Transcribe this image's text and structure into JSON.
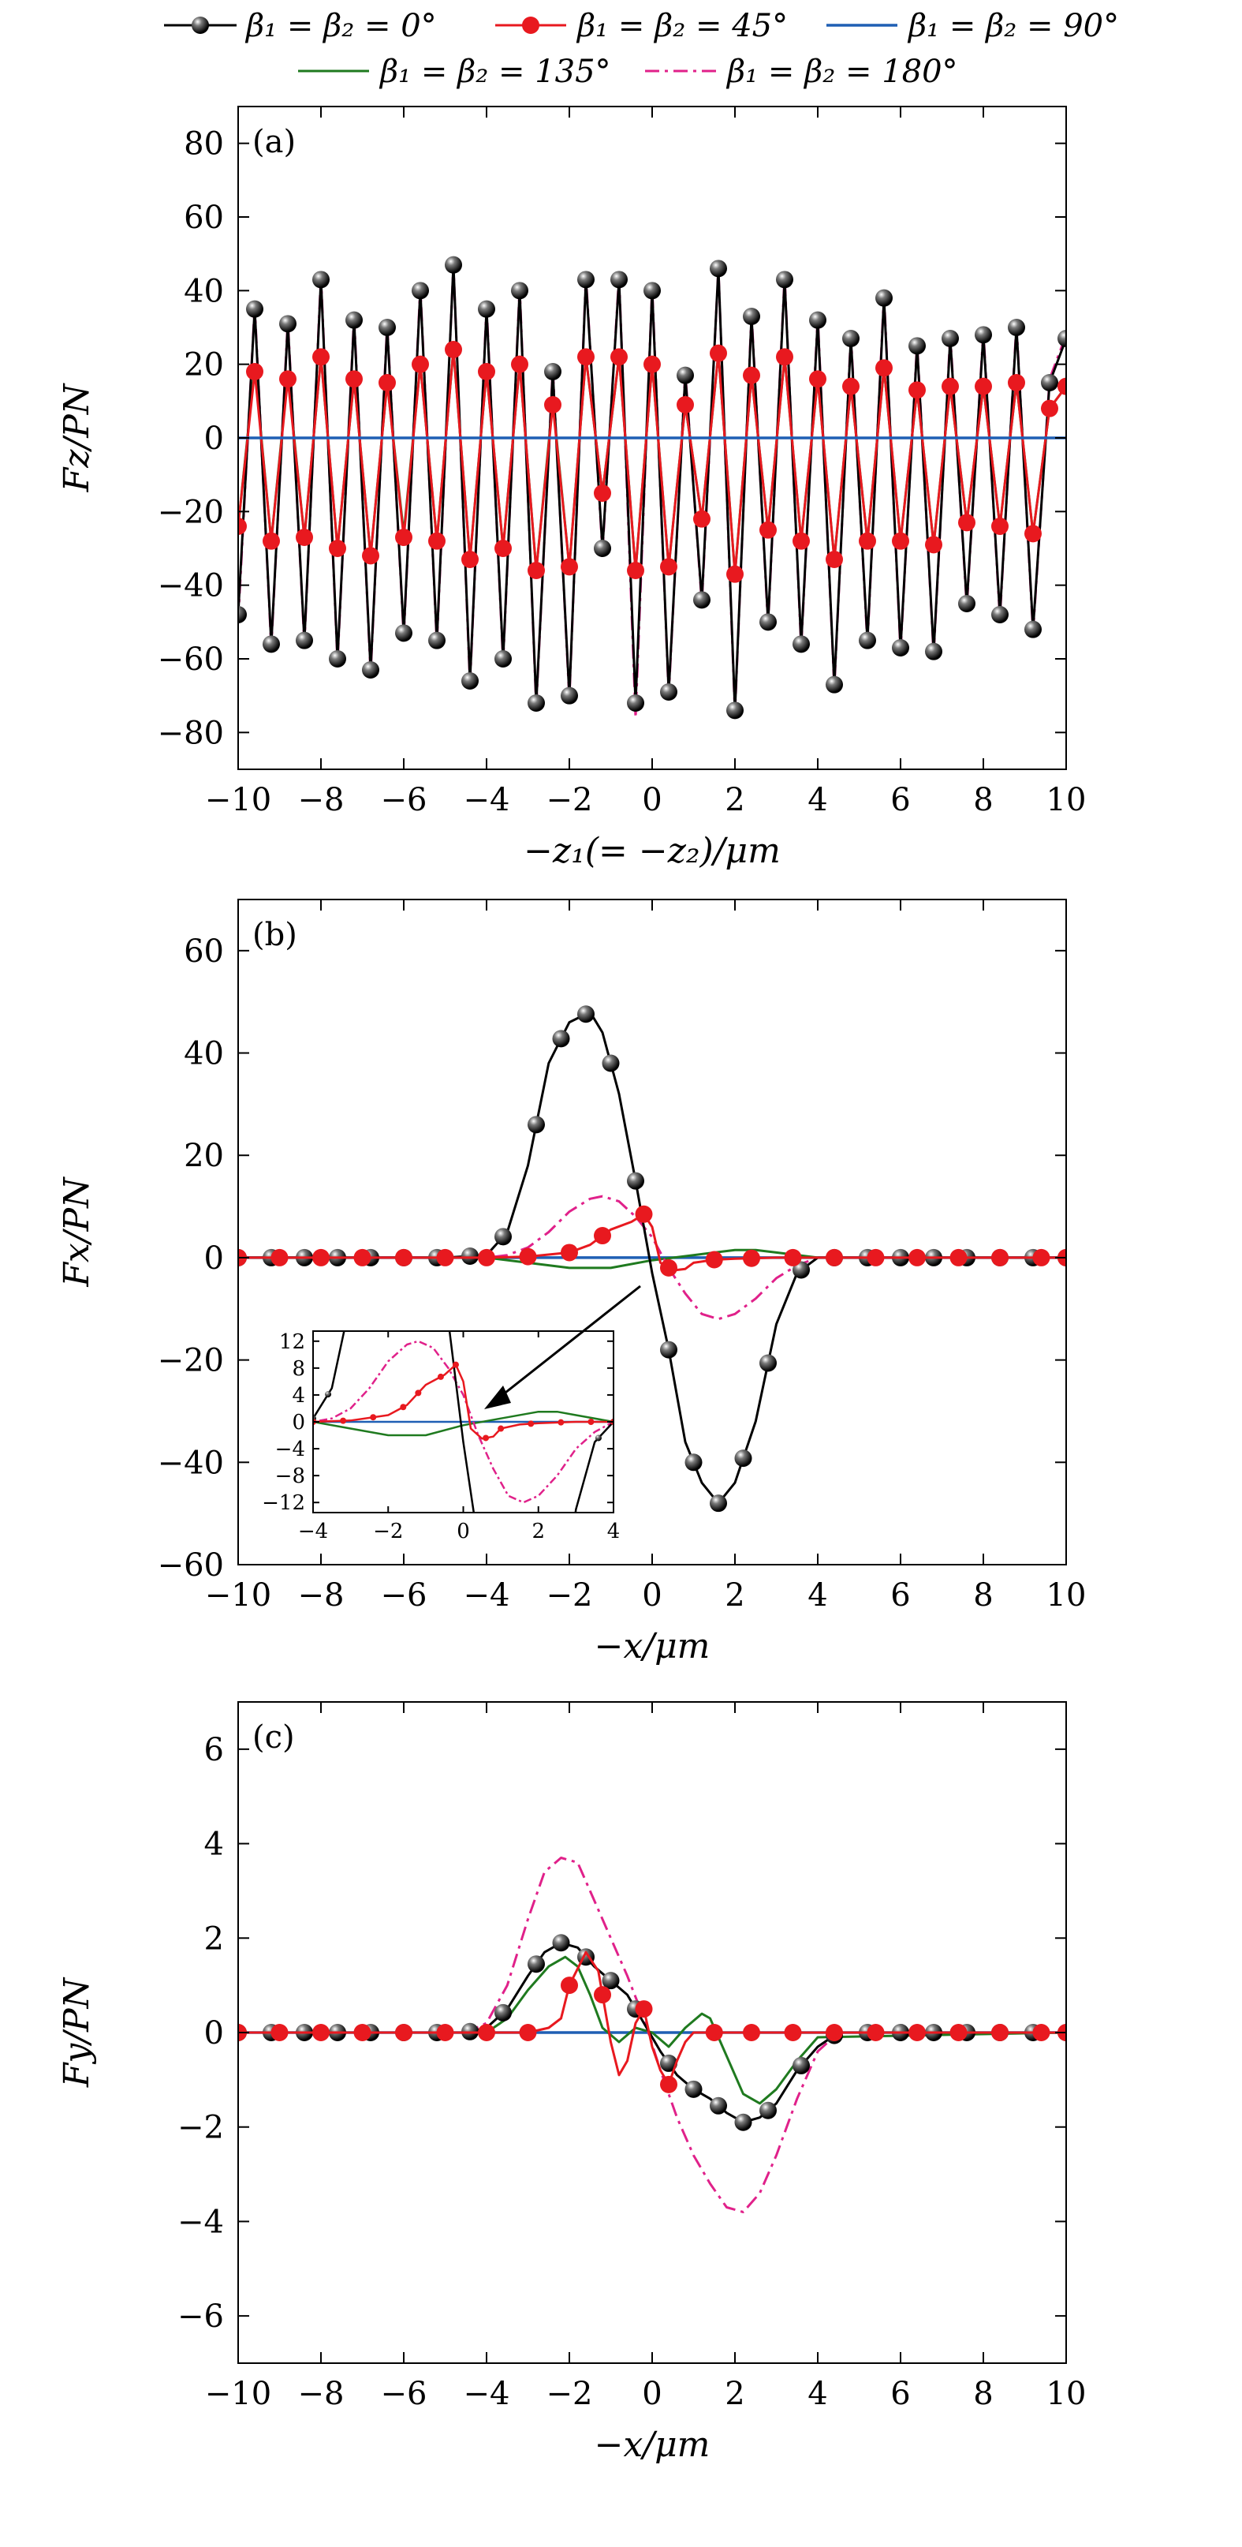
{
  "figure": {
    "colors": {
      "black": "#000000",
      "red": "#e8191f",
      "blue": "#1f5fb4",
      "green": "#1f7a1f",
      "magenta": "#e0218a"
    }
  },
  "legend": [
    {
      "label": "β₁ = β₂ = 0°",
      "style": "black-ball"
    },
    {
      "label": "β₁ = β₂ = 45°",
      "style": "red-dot"
    },
    {
      "label": "β₁ = β₂ = 90°",
      "style": "blue"
    },
    {
      "label": "β₁ = β₂ = 135°",
      "style": "green"
    },
    {
      "label": "β₁ = β₂ = 180°",
      "style": "magenta-dashdot"
    }
  ],
  "chart_data": [
    {
      "type": "line",
      "panel_label": "(a)",
      "xlabel": "−z₁(= −z₂)/μm",
      "ylabel": "Fz/PN",
      "xlim": [
        -10,
        10
      ],
      "ylim": [
        -90,
        90
      ],
      "xticks": [
        -10,
        -8,
        -6,
        -4,
        -2,
        0,
        2,
        4,
        6,
        8,
        10
      ],
      "yticks": [
        -80,
        -60,
        -40,
        -20,
        0,
        20,
        40,
        60,
        80
      ],
      "xtick_labels": [
        "−10",
        "−8",
        "−6",
        "−4",
        "−2",
        "0",
        "2",
        "4",
        "6",
        "8",
        "10"
      ],
      "ytick_labels": [
        "−80",
        "−60",
        "−40",
        "−20",
        "0",
        "20",
        "40",
        "60",
        "80"
      ],
      "series": [
        {
          "name": "β₁ = β₂ = 0°",
          "x": [
            -10,
            -9.6,
            -9.2,
            -8.8,
            -8.4,
            -8.0,
            -7.6,
            -7.2,
            -6.8,
            -6.4,
            -6.0,
            -5.6,
            -5.2,
            -4.8,
            -4.4,
            -4.0,
            -3.6,
            -3.2,
            -2.8,
            -2.4,
            -2.0,
            -1.6,
            -1.2,
            -0.8,
            -0.4,
            0,
            0.4,
            0.8,
            1.2,
            1.6,
            2.0,
            2.4,
            2.8,
            3.2,
            3.6,
            4.0,
            4.4,
            4.8,
            5.2,
            5.6,
            6.0,
            6.4,
            6.8,
            7.2,
            7.6,
            8.0,
            8.4,
            8.8,
            9.2,
            9.6,
            10
          ],
          "y": [
            -48,
            35,
            -56,
            31,
            -55,
            43,
            -60,
            32,
            -63,
            30,
            -53,
            40,
            -55,
            47,
            -66,
            35,
            -60,
            40,
            -72,
            18,
            -70,
            43,
            -30,
            43,
            -72,
            40,
            -69,
            17,
            -44,
            46,
            -74,
            33,
            -50,
            43,
            -56,
            32,
            -67,
            27,
            -55,
            38,
            -57,
            25,
            -58,
            27,
            -45,
            28,
            -48,
            30,
            -52,
            15,
            27
          ]
        },
        {
          "name": "β₁ = β₂ = 45°",
          "x": [
            -10,
            -9.6,
            -9.2,
            -8.8,
            -8.4,
            -8.0,
            -7.6,
            -7.2,
            -6.8,
            -6.4,
            -6.0,
            -5.6,
            -5.2,
            -4.8,
            -4.4,
            -4.0,
            -3.6,
            -3.2,
            -2.8,
            -2.4,
            -2.0,
            -1.6,
            -1.2,
            -0.8,
            -0.4,
            0,
            0.4,
            0.8,
            1.2,
            1.6,
            2.0,
            2.4,
            2.8,
            3.2,
            3.6,
            4.0,
            4.4,
            4.8,
            5.2,
            5.6,
            6.0,
            6.4,
            6.8,
            7.2,
            7.6,
            8.0,
            8.4,
            8.8,
            9.2,
            9.6,
            10
          ],
          "y": [
            -24,
            18,
            -28,
            16,
            -27,
            22,
            -30,
            16,
            -32,
            15,
            -27,
            20,
            -28,
            24,
            -33,
            18,
            -30,
            20,
            -36,
            9,
            -35,
            22,
            -15,
            22,
            -36,
            20,
            -35,
            9,
            -22,
            23,
            -37,
            17,
            -25,
            22,
            -28,
            16,
            -33,
            14,
            -28,
            19,
            -28,
            13,
            -29,
            14,
            -23,
            14,
            -24,
            15,
            -26,
            8,
            14
          ]
        },
        {
          "name": "β₁ = β₂ = 90°",
          "x": [
            -10,
            10
          ],
          "y": [
            0,
            0
          ]
        },
        {
          "name": "β₁ = β₂ = 135°",
          "x": [
            -10,
            -9.6,
            -9.2,
            -8.8,
            -8.4,
            -8.0,
            -7.6,
            -7.2,
            -6.8,
            -6.4,
            -6.0,
            -5.6,
            -5.2,
            -4.8,
            -4.4,
            -4.0,
            -3.6,
            -3.2,
            -2.8,
            -2.4,
            -2.0,
            -1.6,
            -1.2,
            -0.8,
            -0.4,
            0,
            0.4,
            0.8,
            1.2,
            1.6,
            2.0,
            2.4,
            2.8,
            3.2,
            3.6,
            4.0,
            4.4,
            4.8,
            5.2,
            5.6,
            6.0,
            6.4,
            6.8,
            7.2,
            7.6,
            8.0,
            8.4,
            8.8,
            9.2,
            9.6,
            10
          ],
          "y": [
            -24,
            19,
            -28,
            17,
            -27,
            22,
            -30,
            16,
            -32,
            15,
            -26,
            20,
            -28,
            24,
            -33,
            18,
            -30,
            20,
            -36,
            10,
            -35,
            22,
            -15,
            22,
            -36,
            20,
            -35,
            9,
            -22,
            23,
            -37,
            17,
            -25,
            22,
            -28,
            16,
            -33,
            14,
            -28,
            19,
            -28,
            13,
            -29,
            14,
            -23,
            14,
            -24,
            15,
            -26,
            8,
            14
          ]
        },
        {
          "name": "β₁ = β₂ = 180°",
          "x": [
            -10,
            -9.6,
            -9.2,
            -8.8,
            -8.4,
            -8.0,
            -7.6,
            -7.2,
            -6.8,
            -6.4,
            -6.0,
            -5.6,
            -5.2,
            -4.8,
            -4.4,
            -4.0,
            -3.6,
            -3.2,
            -2.8,
            -2.4,
            -2.0,
            -1.6,
            -1.2,
            -0.8,
            -0.4,
            0,
            0.4,
            0.8,
            1.2,
            1.6,
            2.0,
            2.4,
            2.8,
            3.2,
            3.6,
            4.0,
            4.4,
            4.8,
            5.2,
            5.6,
            6.0,
            6.4,
            6.8,
            7.2,
            7.6,
            8.0,
            8.4,
            8.8,
            9.2,
            9.6,
            10
          ],
          "y": [
            -50,
            36,
            -57,
            32,
            -56,
            44,
            -61,
            33,
            -64,
            31,
            -54,
            41,
            -56,
            47,
            -67,
            36,
            -61,
            41,
            -73,
            19,
            -71,
            44,
            -31,
            44,
            -76,
            41,
            -70,
            18,
            -45,
            46,
            -75,
            34,
            -51,
            44,
            -57,
            33,
            -68,
            28,
            -56,
            39,
            -58,
            26,
            -59,
            28,
            -46,
            29,
            -49,
            31,
            -53,
            16,
            28
          ]
        }
      ]
    },
    {
      "type": "line",
      "panel_label": "(b)",
      "xlabel": "−x/μm",
      "ylabel": "Fx/PN",
      "xlim": [
        -10,
        10
      ],
      "ylim": [
        -60,
        70
      ],
      "xticks": [
        -10,
        -8,
        -6,
        -4,
        -2,
        0,
        2,
        4,
        6,
        8,
        10
      ],
      "yticks": [
        -60,
        -40,
        -20,
        0,
        20,
        40,
        60
      ],
      "xtick_labels": [
        "−10",
        "−8",
        "−6",
        "−4",
        "−2",
        "0",
        "2",
        "4",
        "6",
        "8",
        "10"
      ],
      "ytick_labels": [
        "−60",
        "−40",
        "−20",
        "0",
        "20",
        "40",
        "60"
      ],
      "series": [
        {
          "name": "β₁ = β₂ = 0°",
          "x": [
            -10,
            -5,
            -4,
            -3.5,
            -3,
            -2.5,
            -2,
            -1.5,
            -1.2,
            -0.8,
            -0.4,
            0,
            0.4,
            0.8,
            1.2,
            1.6,
            2,
            2.5,
            3,
            3.5,
            4,
            5,
            10
          ],
          "y": [
            0,
            0,
            0.5,
            5,
            18,
            38,
            46,
            48,
            44,
            32,
            15,
            -3,
            -18,
            -36,
            -44,
            -48,
            -44,
            -32,
            -13,
            -3,
            0,
            0,
            0
          ]
        },
        {
          "name": "β₁ = β₂ = 45°",
          "x": [
            -10,
            -4,
            -3,
            -2,
            -1.5,
            -1,
            -0.5,
            -0.2,
            0,
            0.2,
            0.5,
            0.8,
            1,
            1.5,
            2,
            3,
            4,
            10
          ],
          "y": [
            0,
            0,
            0.2,
            1,
            2.5,
            5.5,
            7,
            8.5,
            6,
            -1,
            -2.5,
            -2.2,
            -1,
            -0.4,
            -0.2,
            0,
            0,
            0
          ]
        },
        {
          "name": "β₁ = β₂ = 90°",
          "x": [
            -10,
            10
          ],
          "y": [
            0,
            0
          ]
        },
        {
          "name": "β₁ = β₂ = 135°",
          "x": [
            -10,
            -4,
            -3,
            -2,
            -1,
            0,
            1,
            2,
            2.5,
            3,
            4,
            10
          ],
          "y": [
            0,
            0,
            -1,
            -2,
            -2,
            -0.5,
            0.5,
            1.5,
            1.5,
            1,
            0,
            0
          ]
        },
        {
          "name": "β₁ = β₂ = 180°",
          "x": [
            -10,
            -4,
            -3.5,
            -3,
            -2.5,
            -2,
            -1.5,
            -1.2,
            -0.8,
            -0.4,
            0,
            0.4,
            0.8,
            1.2,
            1.6,
            2,
            2.5,
            3,
            3.5,
            4,
            10
          ],
          "y": [
            0,
            0,
            0.5,
            2,
            5,
            9,
            11.5,
            12,
            11,
            8,
            4,
            -2,
            -7,
            -11,
            -12,
            -11,
            -8,
            -4,
            -1.5,
            0,
            0
          ]
        }
      ],
      "inset": {
        "xlim": [
          -4,
          4
        ],
        "ylim": [
          -13.5,
          13.5
        ],
        "xticks": [
          -4,
          -2,
          0,
          2,
          4
        ],
        "yticks": [
          -12,
          -8,
          -4,
          0,
          4,
          8,
          12
        ],
        "xtick_labels": [
          "−4",
          "−2",
          "0",
          "2",
          "4"
        ],
        "ytick_labels": [
          "−12",
          "−8",
          "−4",
          "0",
          "4",
          "8",
          "12"
        ]
      }
    },
    {
      "type": "line",
      "panel_label": "(c)",
      "xlabel": "−x/μm",
      "ylabel": "Fy/PN",
      "xlim": [
        -10,
        10
      ],
      "ylim": [
        -7,
        7
      ],
      "xticks": [
        -10,
        -8,
        -6,
        -4,
        -2,
        0,
        2,
        4,
        6,
        8,
        10
      ],
      "yticks": [
        -6,
        -4,
        -2,
        0,
        2,
        4,
        6
      ],
      "xtick_labels": [
        "−10",
        "−8",
        "−6",
        "−4",
        "−2",
        "0",
        "2",
        "4",
        "6",
        "8",
        "10"
      ],
      "ytick_labels": [
        "−6",
        "−4",
        "−2",
        "0",
        "2",
        "4",
        "6"
      ],
      "series": [
        {
          "name": "β₁ = β₂ = 0°",
          "x": [
            -10,
            -5,
            -4.5,
            -4,
            -3.5,
            -3,
            -2.6,
            -2.2,
            -1.8,
            -1.4,
            -1,
            -0.6,
            -0.2,
            0.2,
            0.6,
            1,
            1.4,
            1.8,
            2.2,
            2.6,
            3,
            3.5,
            4,
            4.5,
            5,
            10
          ],
          "y": [
            0,
            0,
            0,
            0.1,
            0.5,
            1.2,
            1.7,
            1.9,
            1.8,
            1.4,
            1.1,
            0.8,
            0.2,
            -0.4,
            -0.9,
            -1.2,
            -1.4,
            -1.7,
            -1.9,
            -1.8,
            -1.5,
            -0.8,
            -0.3,
            0,
            0,
            0
          ]
        },
        {
          "name": "β₁ = β₂ = 45°",
          "x": [
            -10,
            -3,
            -2.5,
            -2.2,
            -2.0,
            -1.6,
            -1.3,
            -1.0,
            -0.8,
            -0.6,
            -0.4,
            -0.2,
            0,
            0.2,
            0.4,
            0.6,
            0.8,
            1.0,
            1.5,
            2,
            10
          ],
          "y": [
            0,
            0,
            0.1,
            0.3,
            1.0,
            1.7,
            1.3,
            -0.2,
            -0.9,
            -0.6,
            0.2,
            0.5,
            -0.3,
            -0.8,
            -1.1,
            -0.6,
            -0.2,
            0,
            0,
            0,
            0
          ]
        },
        {
          "name": "β₁ = β₂ = 90°",
          "x": [
            -10,
            10
          ],
          "y": [
            0,
            0
          ]
        },
        {
          "name": "β₁ = β₂ = 135°",
          "x": [
            -10,
            -4,
            -3.5,
            -3,
            -2.5,
            -2.1,
            -1.8,
            -1.5,
            -1.2,
            -0.8,
            -0.4,
            0,
            0.4,
            0.8,
            1.2,
            1.4,
            1.8,
            2.2,
            2.6,
            3,
            3.5,
            4,
            10
          ],
          "y": [
            0,
            0,
            0.3,
            0.9,
            1.4,
            1.6,
            1.4,
            0.8,
            0.1,
            -0.2,
            0.1,
            0,
            -0.3,
            0.1,
            0.4,
            0.3,
            -0.5,
            -1.3,
            -1.5,
            -1.2,
            -0.6,
            -0.1,
            0
          ]
        },
        {
          "name": "β₁ = β₂ = 180°",
          "x": [
            -10,
            -5,
            -4.5,
            -4,
            -3.5,
            -3,
            -2.6,
            -2.2,
            -1.8,
            -1.4,
            -1,
            -0.6,
            -0.2,
            0.2,
            0.6,
            1,
            1.4,
            1.8,
            2.2,
            2.6,
            3,
            3.5,
            4,
            4.5,
            5,
            10
          ],
          "y": [
            0,
            0,
            0,
            0.2,
            1.0,
            2.4,
            3.4,
            3.7,
            3.6,
            2.8,
            2.0,
            1.2,
            0.3,
            -0.8,
            -1.8,
            -2.6,
            -3.2,
            -3.7,
            -3.8,
            -3.4,
            -2.6,
            -1.4,
            -0.4,
            0,
            0,
            0
          ]
        }
      ]
    }
  ]
}
